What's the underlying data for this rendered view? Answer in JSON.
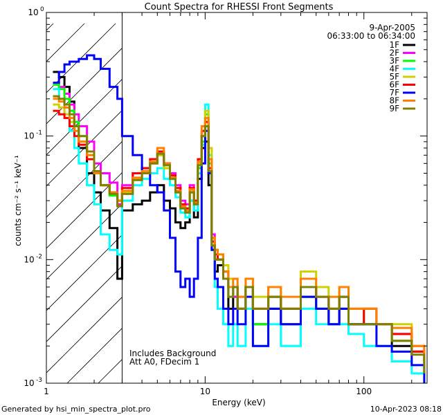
{
  "chart_data": {
    "type": "line",
    "title": "Count Spectra for RHESSI Front Segments",
    "xlabel": "Energy (keV)",
    "ylabel": "counts cm⁻² s⁻¹ keV⁻¹",
    "xscale": "log",
    "yscale": "log",
    "xlim": [
      1,
      250
    ],
    "ylim": [
      0.001,
      1
    ],
    "xticks": [
      {
        "value": 1,
        "label": "1"
      },
      {
        "value": 10,
        "label": "10"
      },
      {
        "value": 100,
        "label": "100"
      }
    ],
    "yticks": [
      {
        "value": 1,
        "base": "10",
        "exp": "0"
      },
      {
        "value": 0.1,
        "base": "10",
        "exp": "-1"
      },
      {
        "value": 0.01,
        "base": "10",
        "exp": "-2"
      },
      {
        "value": 0.001,
        "base": "10",
        "exp": "-3"
      }
    ],
    "date": "9-Apr-2005",
    "time_range": "06:33:00 to 06:34:00",
    "shaded_region": {
      "x_from": 1,
      "x_to": 3,
      "style": "hatched"
    },
    "annotations": [
      "Includes Background",
      "Att A0, FDecim 1"
    ],
    "legend_position": "top-right",
    "series": [
      {
        "name": "1F",
        "color": "#000000",
        "x": [
          1.1,
          1.2,
          1.3,
          1.4,
          1.5,
          1.6,
          1.8,
          2.0,
          2.2,
          2.5,
          2.8,
          3.0,
          3.5,
          4.0,
          4.5,
          5.0,
          5.5,
          6.0,
          6.5,
          7.0,
          7.5,
          8.0,
          8.5,
          9.0,
          9.5,
          10.0,
          10.5,
          11.0,
          11.5,
          12,
          13,
          14,
          15,
          16,
          18,
          20,
          25,
          30,
          40,
          50,
          60,
          70,
          80,
          100,
          120,
          150,
          200,
          240
        ],
        "y": [
          0.33,
          0.3,
          0.25,
          0.19,
          0.12,
          0.08,
          0.05,
          0.035,
          0.025,
          0.018,
          0.007,
          0.025,
          0.028,
          0.03,
          0.035,
          0.04,
          0.03,
          0.026,
          0.02,
          0.018,
          0.02,
          0.03,
          0.022,
          0.045,
          0.08,
          0.09,
          0.04,
          0.012,
          0.008,
          0.009,
          0.007,
          0.004,
          0.005,
          0.004,
          0.006,
          0.003,
          0.004,
          0.003,
          0.005,
          0.004,
          0.003,
          0.004,
          0.003,
          0.003,
          0.003,
          0.002,
          0.0018,
          0.0012
        ]
      },
      {
        "name": "2F",
        "color": "#ff00ff",
        "x": [
          1.1,
          1.2,
          1.3,
          1.4,
          1.5,
          1.6,
          1.8,
          2.0,
          2.2,
          2.5,
          2.8,
          3.0,
          3.5,
          4.0,
          4.5,
          5.0,
          5.5,
          6.0,
          6.5,
          7.0,
          7.5,
          8.0,
          8.5,
          9.0,
          9.5,
          10.0,
          10.5,
          11.0,
          11.5,
          12,
          13,
          14,
          15,
          16,
          18,
          20,
          25,
          30,
          40,
          50,
          60,
          70,
          80,
          100,
          120,
          150,
          200,
          240
        ],
        "y": [
          0.27,
          0.25,
          0.22,
          0.18,
          0.15,
          0.12,
          0.09,
          0.06,
          0.05,
          0.042,
          0.028,
          0.04,
          0.05,
          0.055,
          0.06,
          0.07,
          0.06,
          0.05,
          0.04,
          0.03,
          0.028,
          0.04,
          0.03,
          0.06,
          0.1,
          0.12,
          0.05,
          0.016,
          0.012,
          0.01,
          0.008,
          0.006,
          0.005,
          0.005,
          0.006,
          0.004,
          0.005,
          0.004,
          0.006,
          0.005,
          0.004,
          0.005,
          0.004,
          0.004,
          0.003,
          0.0025,
          0.002,
          0.0015
        ]
      },
      {
        "name": "3F",
        "color": "#00ff00",
        "x": [
          1.1,
          1.2,
          1.3,
          1.4,
          1.5,
          1.6,
          1.8,
          2.0,
          2.2,
          2.5,
          2.8,
          3.0,
          3.5,
          4.0,
          4.5,
          5.0,
          5.5,
          6.0,
          6.5,
          7.0,
          7.5,
          8.0,
          8.5,
          9.0,
          9.5,
          10.0,
          10.5,
          11.0,
          11.5,
          12,
          13,
          14,
          15,
          16,
          18,
          20,
          25,
          30,
          40,
          50,
          60,
          70,
          80,
          100,
          120,
          150,
          200,
          240
        ],
        "y": [
          0.26,
          0.24,
          0.2,
          0.16,
          0.13,
          0.1,
          0.075,
          0.05,
          0.04,
          0.033,
          0.03,
          0.035,
          0.045,
          0.05,
          0.06,
          0.07,
          0.055,
          0.045,
          0.035,
          0.026,
          0.025,
          0.035,
          0.028,
          0.055,
          0.09,
          0.15,
          0.06,
          0.014,
          0.01,
          0.01,
          0.007,
          0.005,
          0.006,
          0.004,
          0.006,
          0.003,
          0.005,
          0.004,
          0.005,
          0.004,
          0.004,
          0.005,
          0.003,
          0.004,
          0.003,
          0.0022,
          0.0018,
          0.0014
        ]
      },
      {
        "name": "4F",
        "color": "#00ffff",
        "x": [
          1.1,
          1.2,
          1.3,
          1.4,
          1.5,
          1.6,
          1.8,
          2.0,
          2.2,
          2.5,
          2.8,
          3.0,
          3.5,
          4.0,
          4.5,
          5.0,
          5.5,
          6.0,
          6.5,
          7.0,
          7.5,
          8.0,
          8.5,
          9.0,
          9.5,
          10.0,
          10.5,
          11.0,
          11.5,
          12,
          13,
          14,
          15,
          16,
          18,
          20,
          25,
          30,
          40,
          50,
          60,
          70,
          80,
          100,
          120,
          150,
          200,
          240
        ],
        "y": [
          0.24,
          0.2,
          0.15,
          0.11,
          0.08,
          0.06,
          0.04,
          0.028,
          0.016,
          0.012,
          0.011,
          0.03,
          0.04,
          0.045,
          0.05,
          0.055,
          0.045,
          0.04,
          0.032,
          0.024,
          0.022,
          0.03,
          0.025,
          0.05,
          0.085,
          0.18,
          0.07,
          0.012,
          0.006,
          0.004,
          0.003,
          0.002,
          0.003,
          0.002,
          0.004,
          0.002,
          0.003,
          0.002,
          0.004,
          0.003,
          0.003,
          0.003,
          0.0025,
          0.002,
          0.002,
          0.0015,
          0.0012,
          0.001
        ]
      },
      {
        "name": "5F",
        "color": "#d0d000",
        "x": [
          1.1,
          1.2,
          1.3,
          1.4,
          1.5,
          1.6,
          1.8,
          2.0,
          2.2,
          2.5,
          2.8,
          3.0,
          3.5,
          4.0,
          4.5,
          5.0,
          5.5,
          6.0,
          6.5,
          7.0,
          7.5,
          8.0,
          8.5,
          9.0,
          9.5,
          10.0,
          10.5,
          11.0,
          11.5,
          12,
          13,
          14,
          15,
          16,
          18,
          20,
          25,
          30,
          40,
          50,
          60,
          70,
          80,
          100,
          120,
          150,
          200,
          240
        ],
        "y": [
          0.18,
          0.17,
          0.15,
          0.13,
          0.11,
          0.09,
          0.07,
          0.05,
          0.04,
          0.035,
          0.03,
          0.035,
          0.045,
          0.05,
          0.06,
          0.07,
          0.055,
          0.045,
          0.036,
          0.027,
          0.026,
          0.036,
          0.03,
          0.06,
          0.1,
          0.16,
          0.08,
          0.015,
          0.012,
          0.011,
          0.009,
          0.007,
          0.006,
          0.005,
          0.007,
          0.005,
          0.006,
          0.004,
          0.008,
          0.006,
          0.005,
          0.006,
          0.004,
          0.004,
          0.003,
          0.003,
          0.002,
          0.0015
        ]
      },
      {
        "name": "6F",
        "color": "#ff0000",
        "x": [
          1.1,
          1.2,
          1.3,
          1.4,
          1.5,
          1.6,
          1.8,
          2.0,
          2.2,
          2.5,
          2.8,
          3.0,
          3.5,
          4.0,
          4.5,
          5.0,
          5.5,
          6.0,
          6.5,
          7.0,
          7.5,
          8.0,
          8.5,
          9.0,
          9.5,
          10.0,
          10.5,
          11.0,
          11.5,
          12,
          13,
          14,
          15,
          16,
          18,
          20,
          25,
          30,
          40,
          50,
          60,
          70,
          80,
          100,
          120,
          150,
          200,
          240
        ],
        "y": [
          0.16,
          0.15,
          0.14,
          0.12,
          0.1,
          0.085,
          0.065,
          0.05,
          0.04,
          0.035,
          0.03,
          0.038,
          0.05,
          0.055,
          0.065,
          0.075,
          0.06,
          0.048,
          0.038,
          0.028,
          0.026,
          0.038,
          0.03,
          0.065,
          0.11,
          0.13,
          0.055,
          0.014,
          0.011,
          0.01,
          0.008,
          0.006,
          0.006,
          0.004,
          0.006,
          0.004,
          0.005,
          0.004,
          0.006,
          0.005,
          0.004,
          0.005,
          0.003,
          0.004,
          0.003,
          0.0025,
          0.0018,
          0.0013
        ]
      },
      {
        "name": "7F",
        "color": "#0000ff",
        "x": [
          1.1,
          1.2,
          1.3,
          1.4,
          1.5,
          1.6,
          1.8,
          2.0,
          2.2,
          2.5,
          2.8,
          3.0,
          3.5,
          4.0,
          4.5,
          5.0,
          5.5,
          6.0,
          6.5,
          7.0,
          7.5,
          8.0,
          8.5,
          9.0,
          9.5,
          10.0,
          10.5,
          11.0,
          11.5,
          12,
          13,
          14,
          15,
          16,
          18,
          20,
          25,
          30,
          40,
          50,
          60,
          70,
          80,
          100,
          120,
          150,
          200,
          240
        ],
        "y": [
          0.27,
          0.33,
          0.38,
          0.4,
          0.4,
          0.42,
          0.45,
          0.42,
          0.35,
          0.25,
          0.2,
          0.1,
          0.07,
          0.05,
          0.04,
          0.035,
          0.025,
          0.015,
          0.008,
          0.006,
          0.007,
          0.005,
          0.007,
          0.015,
          0.06,
          0.11,
          0.05,
          0.012,
          0.007,
          0.006,
          0.004,
          0.003,
          0.004,
          0.003,
          0.005,
          0.002,
          0.004,
          0.003,
          0.005,
          0.004,
          0.003,
          0.004,
          0.003,
          0.003,
          0.002,
          0.0018,
          0.0014,
          0.001
        ]
      },
      {
        "name": "8F",
        "color": "#ff8000",
        "x": [
          1.1,
          1.2,
          1.3,
          1.4,
          1.5,
          1.6,
          1.8,
          2.0,
          2.2,
          2.5,
          2.8,
          3.0,
          3.5,
          4.0,
          4.5,
          5.0,
          5.5,
          6.0,
          6.5,
          7.0,
          7.5,
          8.0,
          8.5,
          9.0,
          9.5,
          10.0,
          10.5,
          11.0,
          11.5,
          12,
          13,
          14,
          15,
          16,
          18,
          20,
          25,
          30,
          40,
          50,
          60,
          70,
          80,
          100,
          120,
          150,
          200,
          240
        ],
        "y": [
          0.2,
          0.19,
          0.17,
          0.14,
          0.11,
          0.09,
          0.07,
          0.05,
          0.04,
          0.035,
          0.03,
          0.036,
          0.046,
          0.052,
          0.062,
          0.08,
          0.06,
          0.046,
          0.036,
          0.027,
          0.025,
          0.037,
          0.029,
          0.062,
          0.12,
          0.14,
          0.065,
          0.015,
          0.012,
          0.011,
          0.008,
          0.006,
          0.007,
          0.005,
          0.007,
          0.004,
          0.006,
          0.005,
          0.007,
          0.005,
          0.005,
          0.006,
          0.004,
          0.004,
          0.003,
          0.0028,
          0.002,
          0.0014
        ]
      },
      {
        "name": "9F",
        "color": "#808000",
        "x": [
          1.1,
          1.2,
          1.3,
          1.4,
          1.5,
          1.6,
          1.8,
          2.0,
          2.2,
          2.5,
          2.8,
          3.0,
          3.5,
          4.0,
          4.5,
          5.0,
          5.5,
          6.0,
          6.5,
          7.0,
          7.5,
          8.0,
          8.5,
          9.0,
          9.5,
          10.0,
          10.5,
          11.0,
          11.5,
          12,
          13,
          14,
          15,
          16,
          18,
          20,
          25,
          30,
          40,
          50,
          60,
          70,
          80,
          100,
          120,
          150,
          200,
          240
        ],
        "y": [
          0.21,
          0.2,
          0.18,
          0.15,
          0.12,
          0.1,
          0.075,
          0.052,
          0.04,
          0.034,
          0.027,
          0.034,
          0.044,
          0.05,
          0.06,
          0.072,
          0.058,
          0.045,
          0.035,
          0.026,
          0.024,
          0.035,
          0.028,
          0.058,
          0.1,
          0.12,
          0.052,
          0.013,
          0.01,
          0.01,
          0.007,
          0.005,
          0.006,
          0.004,
          0.006,
          0.004,
          0.005,
          0.004,
          0.006,
          0.005,
          0.004,
          0.005,
          0.003,
          0.003,
          0.003,
          0.0022,
          0.0017,
          0.0012
        ]
      }
    ]
  },
  "footer": {
    "left": "Generated by hsi_min_spectra_plot.pro",
    "right": "10-Apr-2023 08:18"
  }
}
